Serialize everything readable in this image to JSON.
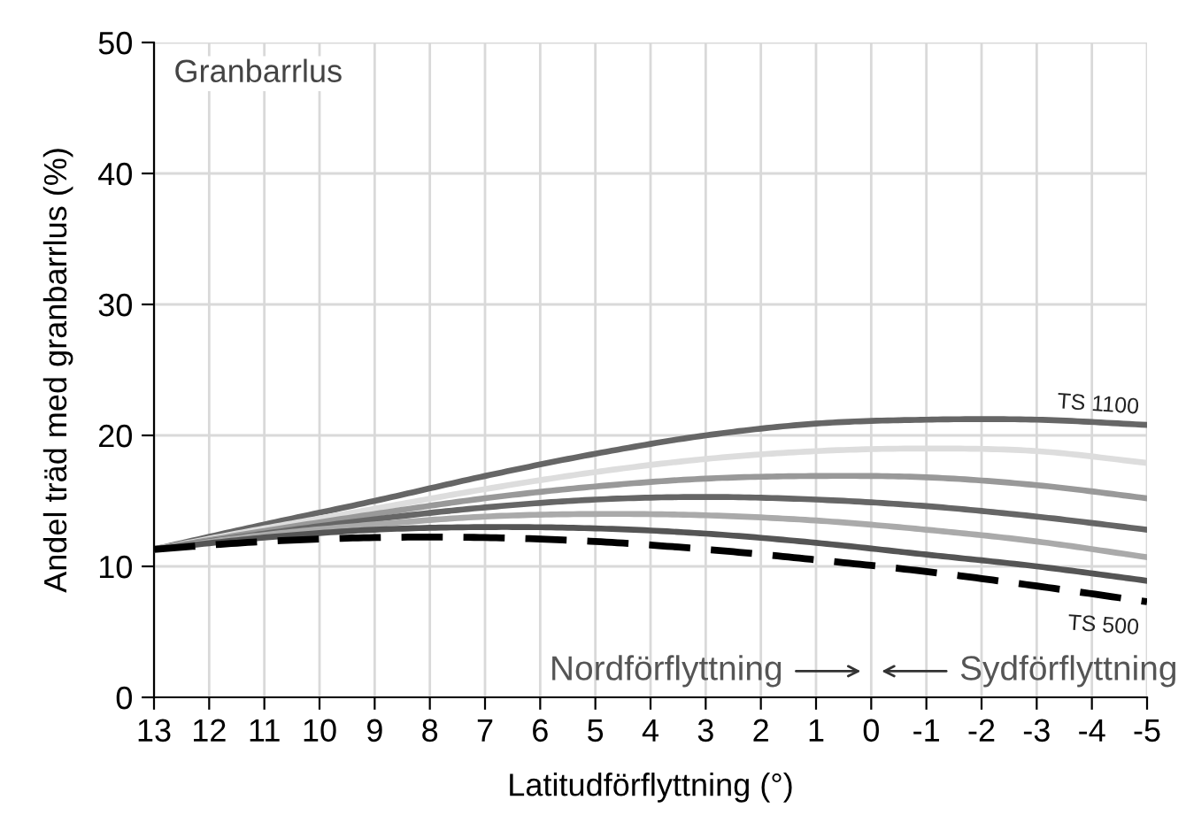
{
  "chart_data": {
    "type": "line",
    "xlabel": "Latitudförflyttning (°)",
    "ylabel": "Andel träd med granbarrlus (%)",
    "x": [
      13,
      11,
      9,
      7,
      5,
      3,
      1,
      -1,
      -3,
      -5
    ],
    "xlim": [
      13,
      -5
    ],
    "xticks": [
      13,
      12,
      11,
      10,
      9,
      8,
      7,
      6,
      5,
      4,
      3,
      2,
      1,
      0,
      -1,
      -2,
      -3,
      -4,
      -5
    ],
    "ylim": [
      0,
      50
    ],
    "yticks": [
      0,
      10,
      20,
      30,
      40,
      50
    ],
    "grid": true,
    "marker": "none",
    "series": [
      {
        "name": "TS 1100",
        "color": "#666666",
        "values": [
          11.3,
          13.2,
          15.0,
          16.9,
          18.6,
          20.0,
          20.9,
          21.2,
          21.2,
          20.8
        ]
      },
      {
        "color": "#dddddd",
        "values": [
          11.3,
          12.9,
          14.4,
          15.9,
          17.2,
          18.2,
          18.8,
          19.0,
          18.8,
          17.9
        ]
      },
      {
        "color": "#999999",
        "values": [
          11.3,
          12.7,
          14.0,
          15.2,
          16.1,
          16.7,
          16.9,
          16.8,
          16.2,
          15.2
        ]
      },
      {
        "color": "#666666",
        "values": [
          11.3,
          12.5,
          13.6,
          14.5,
          15.1,
          15.3,
          15.1,
          14.6,
          13.8,
          12.8
        ]
      },
      {
        "color": "#aaaaaa",
        "values": [
          11.3,
          12.4,
          13.2,
          13.8,
          14.0,
          13.9,
          13.5,
          12.8,
          11.9,
          10.7
        ]
      },
      {
        "color": "#555555",
        "values": [
          11.3,
          12.2,
          12.8,
          13.0,
          12.9,
          12.5,
          11.8,
          10.9,
          10.0,
          8.9
        ]
      },
      {
        "name": "TS 500",
        "color": "#000000",
        "line_style": "dashed",
        "values": [
          11.3,
          11.9,
          12.2,
          12.2,
          11.9,
          11.3,
          10.5,
          9.6,
          8.5,
          7.3
        ]
      }
    ],
    "annotations": [
      "Granbarrlus",
      "Nordförflyttning",
      "Sydförflyttning"
    ]
  }
}
